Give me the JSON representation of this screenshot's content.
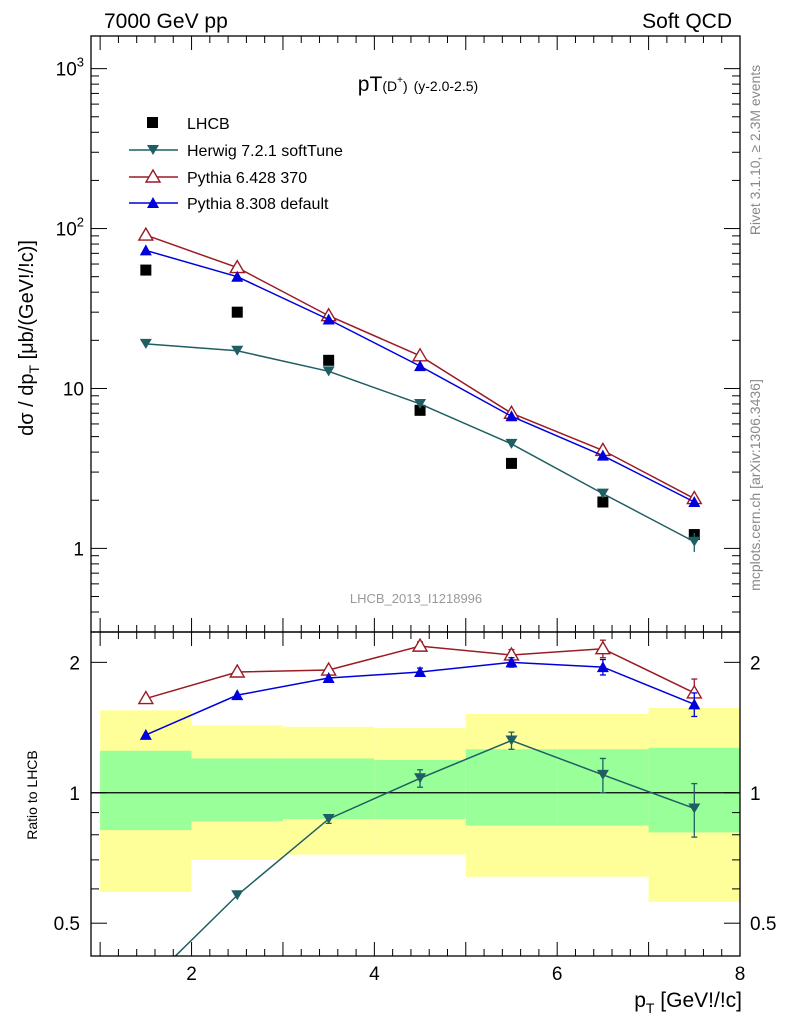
{
  "header": {
    "left": "7000 GeV pp",
    "right": "Soft QCD"
  },
  "side_labels": {
    "rivet": "Rivet 3.1.10, ≥ 2.3M events",
    "mcplots": "mcplots.cern.ch [arXiv:1306.3436]"
  },
  "plot_title": {
    "main": "pT",
    "paren": "(D",
    "sup": "+",
    "close": ")",
    "range": "(y-2.0-2.5)"
  },
  "watermark": "LHCB_2013_I1218996",
  "axes": {
    "ylabel_top": {
      "a": "dσ / dp",
      "sub": "T",
      "b": " [μb/(GeV!/!c)]"
    },
    "ylabel_bottom": "Ratio to LHCB",
    "xlabel": {
      "a": "p",
      "sub": "T",
      "b": " [GeV!/!c]"
    },
    "x_ticks": [
      "2",
      "4",
      "6",
      "8"
    ],
    "top_y_ticks": [
      {
        "value": 1,
        "label": "1"
      },
      {
        "value": 10,
        "label": "10"
      },
      {
        "value": 100,
        "label": "10",
        "sup": "2"
      },
      {
        "value": 1000,
        "label": "10",
        "sup": "3"
      }
    ],
    "bottom_y_ticks": [
      {
        "value": 0.5,
        "label": "0.5"
      },
      {
        "value": 1,
        "label": "1"
      },
      {
        "value": 2,
        "label": "2"
      }
    ]
  },
  "colors": {
    "data": "#000000",
    "herwig": "#1f5f63",
    "pythia6": "#9b1b24",
    "pythia8": "#0000dd",
    "band_inner": "#99ff99",
    "band_outer": "#ffff99"
  },
  "chart_data": {
    "type": "scatter",
    "x_range": [
      0.9,
      8.0
    ],
    "top_panel": {
      "yscale": "log",
      "ylim": [
        0.3,
        1600
      ],
      "legend_placement": "top-left"
    },
    "bottom_panel": {
      "yscale": "log",
      "ylim": [
        0.42,
        2.35
      ]
    },
    "series": [
      {
        "name": "LHCB",
        "key": "data",
        "marker": "square",
        "x": [
          1.5,
          2.5,
          3.5,
          4.5,
          5.5,
          6.5,
          7.5
        ],
        "values": [
          55,
          30,
          15,
          7.3,
          3.4,
          1.95,
          1.22
        ]
      },
      {
        "name": "Herwig 7.2.1 softTune",
        "key": "herwig",
        "marker": "triangle-down",
        "x": [
          1.5,
          2.5,
          3.5,
          4.5,
          5.5,
          6.5,
          7.5
        ],
        "values": [
          19,
          17.2,
          12.8,
          8.0,
          4.5,
          2.2,
          1.1
        ],
        "errors": [
          0,
          0,
          0,
          0,
          0,
          0.12,
          0.15
        ]
      },
      {
        "name": "Pythia 6.428 370",
        "key": "pythia6",
        "marker": "triangle-open",
        "x": [
          1.5,
          2.5,
          3.5,
          4.5,
          5.5,
          6.5,
          7.5
        ],
        "values": [
          91,
          57,
          28.5,
          16.0,
          7.0,
          4.1,
          2.05
        ]
      },
      {
        "name": "Pythia 8.308 default",
        "key": "pythia8",
        "marker": "triangle-up",
        "x": [
          1.5,
          2.5,
          3.5,
          4.5,
          5.5,
          6.5,
          7.5
        ],
        "values": [
          73,
          50,
          27,
          13.8,
          6.7,
          3.8,
          1.95
        ]
      }
    ],
    "ratio": {
      "herwig": {
        "x": [
          1.5,
          2.5,
          3.5,
          4.5,
          5.5,
          6.5,
          7.5
        ],
        "values": [
          0.36,
          0.58,
          0.87,
          1.08,
          1.32,
          1.1,
          0.92
        ],
        "err_lo": [
          0,
          0,
          0.02,
          0.05,
          0.06,
          0.1,
          0.13
        ],
        "err_hi": [
          0,
          0,
          0.02,
          0.05,
          0.06,
          0.1,
          0.13
        ]
      },
      "pythia6": {
        "x": [
          1.5,
          2.5,
          3.5,
          4.5,
          5.5,
          6.5,
          7.5
        ],
        "values": [
          1.65,
          1.9,
          1.92,
          2.18,
          2.08,
          2.15,
          1.7
        ],
        "err_lo": [
          0,
          0,
          0,
          0.05,
          0.06,
          0.1,
          0.13
        ],
        "err_hi": [
          0,
          0,
          0,
          0.05,
          0.06,
          0.1,
          0.13
        ]
      },
      "pythia8": {
        "x": [
          1.5,
          2.5,
          3.5,
          4.5,
          5.5,
          6.5,
          7.5
        ],
        "values": [
          1.36,
          1.68,
          1.84,
          1.9,
          2.0,
          1.95,
          1.6
        ],
        "err_lo": [
          0,
          0,
          0,
          0.04,
          0.05,
          0.08,
          0.1
        ],
        "err_hi": [
          0,
          0,
          0,
          0.04,
          0.05,
          0.08,
          0.1
        ]
      },
      "bands": [
        {
          "x0": 1.0,
          "x1": 2.0,
          "outer": [
            0.59,
            1.55
          ],
          "inner": [
            0.82,
            1.25
          ]
        },
        {
          "x0": 2.0,
          "x1": 3.0,
          "outer": [
            0.7,
            1.43
          ],
          "inner": [
            0.86,
            1.2
          ]
        },
        {
          "x0": 3.0,
          "x1": 4.0,
          "outer": [
            0.72,
            1.42
          ],
          "inner": [
            0.87,
            1.2
          ]
        },
        {
          "x0": 4.0,
          "x1": 5.0,
          "outer": [
            0.72,
            1.41
          ],
          "inner": [
            0.87,
            1.19
          ]
        },
        {
          "x0": 5.0,
          "x1": 6.0,
          "outer": [
            0.64,
            1.52
          ],
          "inner": [
            0.84,
            1.26
          ]
        },
        {
          "x0": 6.0,
          "x1": 7.0,
          "outer": [
            0.64,
            1.52
          ],
          "inner": [
            0.84,
            1.26
          ]
        },
        {
          "x0": 7.0,
          "x1": 8.0,
          "outer": [
            0.56,
            1.57
          ],
          "inner": [
            0.81,
            1.27
          ]
        }
      ]
    }
  }
}
